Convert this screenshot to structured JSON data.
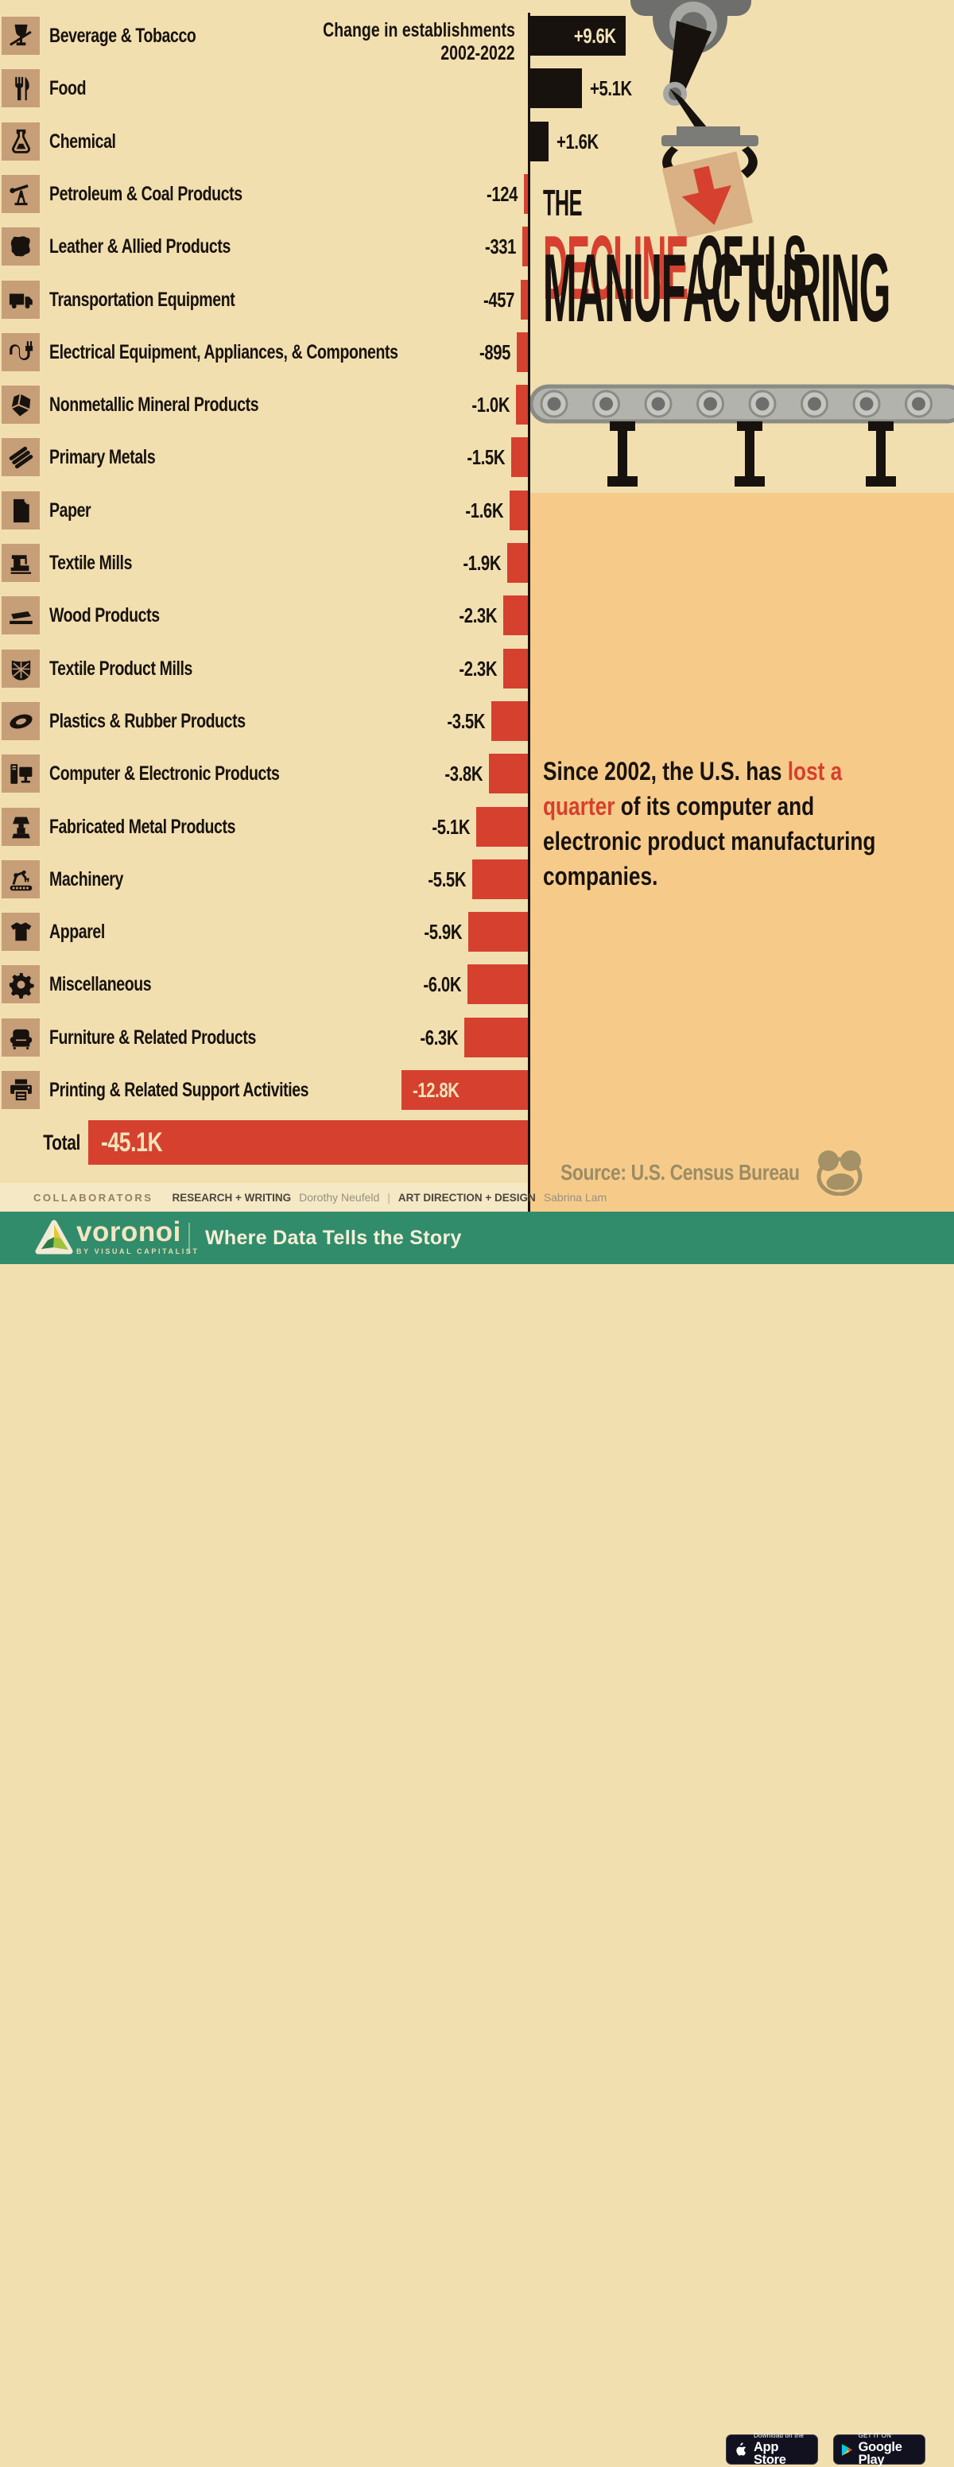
{
  "chart_data": {
    "type": "bar",
    "orientation": "horizontal",
    "title": "Change in establishments 2002-2022",
    "unit": "establishments (change, 2002-2022)",
    "categories": [
      "Beverage & Tobacco",
      "Food",
      "Chemical",
      "Petroleum & Coal Products",
      "Leather & Allied Products",
      "Transportation Equipment",
      "Electrical Equipment, Appliances, & Components",
      "Nonmetallic Mineral Products",
      "Primary Metals",
      "Paper",
      "Textile Mills",
      "Wood Products",
      "Textile Product Mills",
      "Plastics & Rubber Products",
      "Computer & Electronic Products",
      "Fabricated Metal Products",
      "Machinery",
      "Apparel",
      "Miscellaneous",
      "Furniture & Related Products",
      "Printing & Related Support Activities"
    ],
    "values": [
      9600,
      5100,
      1600,
      -124,
      -331,
      -457,
      -895,
      -1000,
      -1500,
      -1600,
      -1900,
      -2300,
      -2300,
      -3500,
      -3800,
      -5100,
      -5500,
      -5900,
      -6000,
      -6300,
      -12800
    ],
    "value_labels": [
      "+9.6K",
      "+5.1K",
      "+1.6K",
      "-124",
      "-331",
      "-457",
      "-895",
      "-1.0K",
      "-1.5K",
      "-1.6K",
      "-1.9K",
      "-2.3K",
      "-2.3K",
      "-3.5K",
      "-3.8K",
      "-5.1K",
      "-5.5K",
      "-5.9K",
      "-6.0K",
      "-6.3K",
      "-12.8K"
    ],
    "icons": [
      "wine-glass-icon",
      "fork-knife-icon",
      "flask-icon",
      "oil-pump-icon",
      "leather-hide-icon",
      "truck-icon",
      "plug-icon",
      "mineral-rock-icon",
      "metal-pipes-icon",
      "paper-sheet-icon",
      "sewing-machine-icon",
      "wood-plank-icon",
      "fabric-patch-icon",
      "tire-icon",
      "computer-icon",
      "metal-press-icon",
      "robot-arm-icon",
      "tshirt-icon",
      "gear-icon",
      "armchair-icon",
      "printer-icon"
    ],
    "total": {
      "label": "Total",
      "value": -45100,
      "value_label": "-45.1K"
    },
    "positive_color": "#17120e",
    "negative_color": "#d6402f",
    "legend_position": "none",
    "grid": false
  },
  "axis_header": {
    "line1": "Change in establishments",
    "line2": "2002-2022"
  },
  "title": {
    "kicker": "THE",
    "line1_segments": [
      {
        "text": "DECLINE",
        "color": "red"
      },
      {
        "text": " OF U.S.",
        "color": "black"
      }
    ],
    "line2": "MANUFACTURING"
  },
  "callout": {
    "segments": [
      {
        "text": "Since 2002, the U.S. has ",
        "color": "black"
      },
      {
        "text": "lost a quarter",
        "color": "red"
      },
      {
        "text": " of its computer and electronic product manufacturing companies.",
        "color": "black"
      }
    ]
  },
  "source": {
    "text": "Source: U.S. Census Bureau",
    "logo": "voronoi-mascot-icon"
  },
  "collaborators": {
    "heading": "COLLABORATORS",
    "role1": "RESEARCH + WRITING",
    "name1": "Dorothy Neufeld",
    "separator": "|",
    "role2": "ART DIRECTION + DESIGN",
    "name2": "Sabrina Lam"
  },
  "footer": {
    "brand": "voronoi",
    "sub_brand": "BY VISUAL CAPITALIST",
    "tagline": "Where Data Tells the Story",
    "appstore_top": "Download on the",
    "appstore_bottom": "App Store",
    "googleplay_top": "GET IT ON",
    "googleplay_bottom": "Google Play"
  },
  "colors": {
    "background_left": "#f2dfb0",
    "background_right_lower": "#f6cb8a",
    "icon_tile": "#c69e77",
    "accent_red": "#d6402f",
    "ink_black": "#17120e",
    "cream_text": "#f4e4bb",
    "footer_green": "#318c6b",
    "source_olive": "#9c8c64"
  }
}
